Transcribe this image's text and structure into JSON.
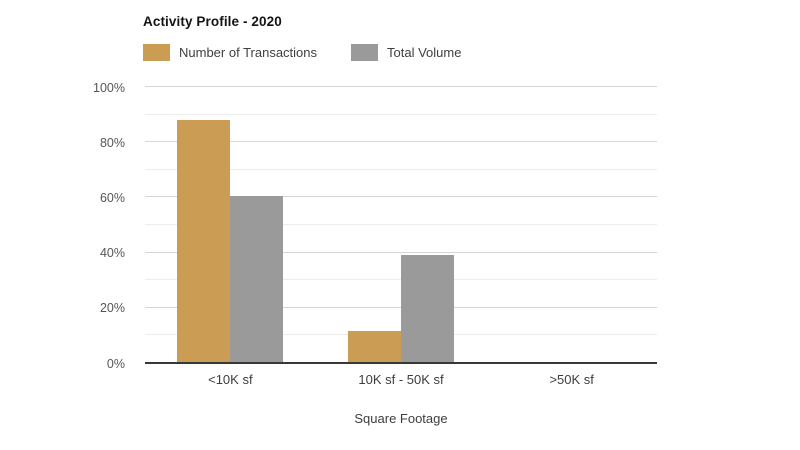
{
  "chart": {
    "title": "Activity Profile - 2020",
    "xlabel": "Square Footage"
  },
  "chart_data": {
    "type": "bar",
    "title": "Activity Profile - 2020",
    "categories": [
      "<10K sf",
      "10K sf - 50K sf",
      ">50K sf"
    ],
    "series": [
      {
        "name": "Number of Transactions",
        "color": "#CB9D54",
        "values": [
          88,
          11.5,
          0.5
        ]
      },
      {
        "name": "Total Volume",
        "color": "#9A9A9A",
        "values": [
          60.5,
          39,
          0.5
        ]
      }
    ],
    "xlabel": "Square Footage",
    "ylabel": "",
    "ylim": [
      0,
      100
    ],
    "yticks": [
      {
        "value": 0,
        "label": "0%"
      },
      {
        "value": 20,
        "label": "20%"
      },
      {
        "value": 40,
        "label": "40%"
      },
      {
        "value": 60,
        "label": "60%"
      },
      {
        "value": 80,
        "label": "80%"
      },
      {
        "value": 100,
        "label": "100%"
      }
    ],
    "minor_gridlines": [
      10,
      30,
      50,
      70,
      90
    ],
    "grid": true,
    "legend_position": "top-left",
    "colors": {
      "major_gridline": "#d6d6d6",
      "minor_gridline": "#ececec",
      "axis_baseline": "#383838",
      "tick_text": "#565656",
      "label_text": "#3d3d3d",
      "title_text": "#141414"
    }
  }
}
